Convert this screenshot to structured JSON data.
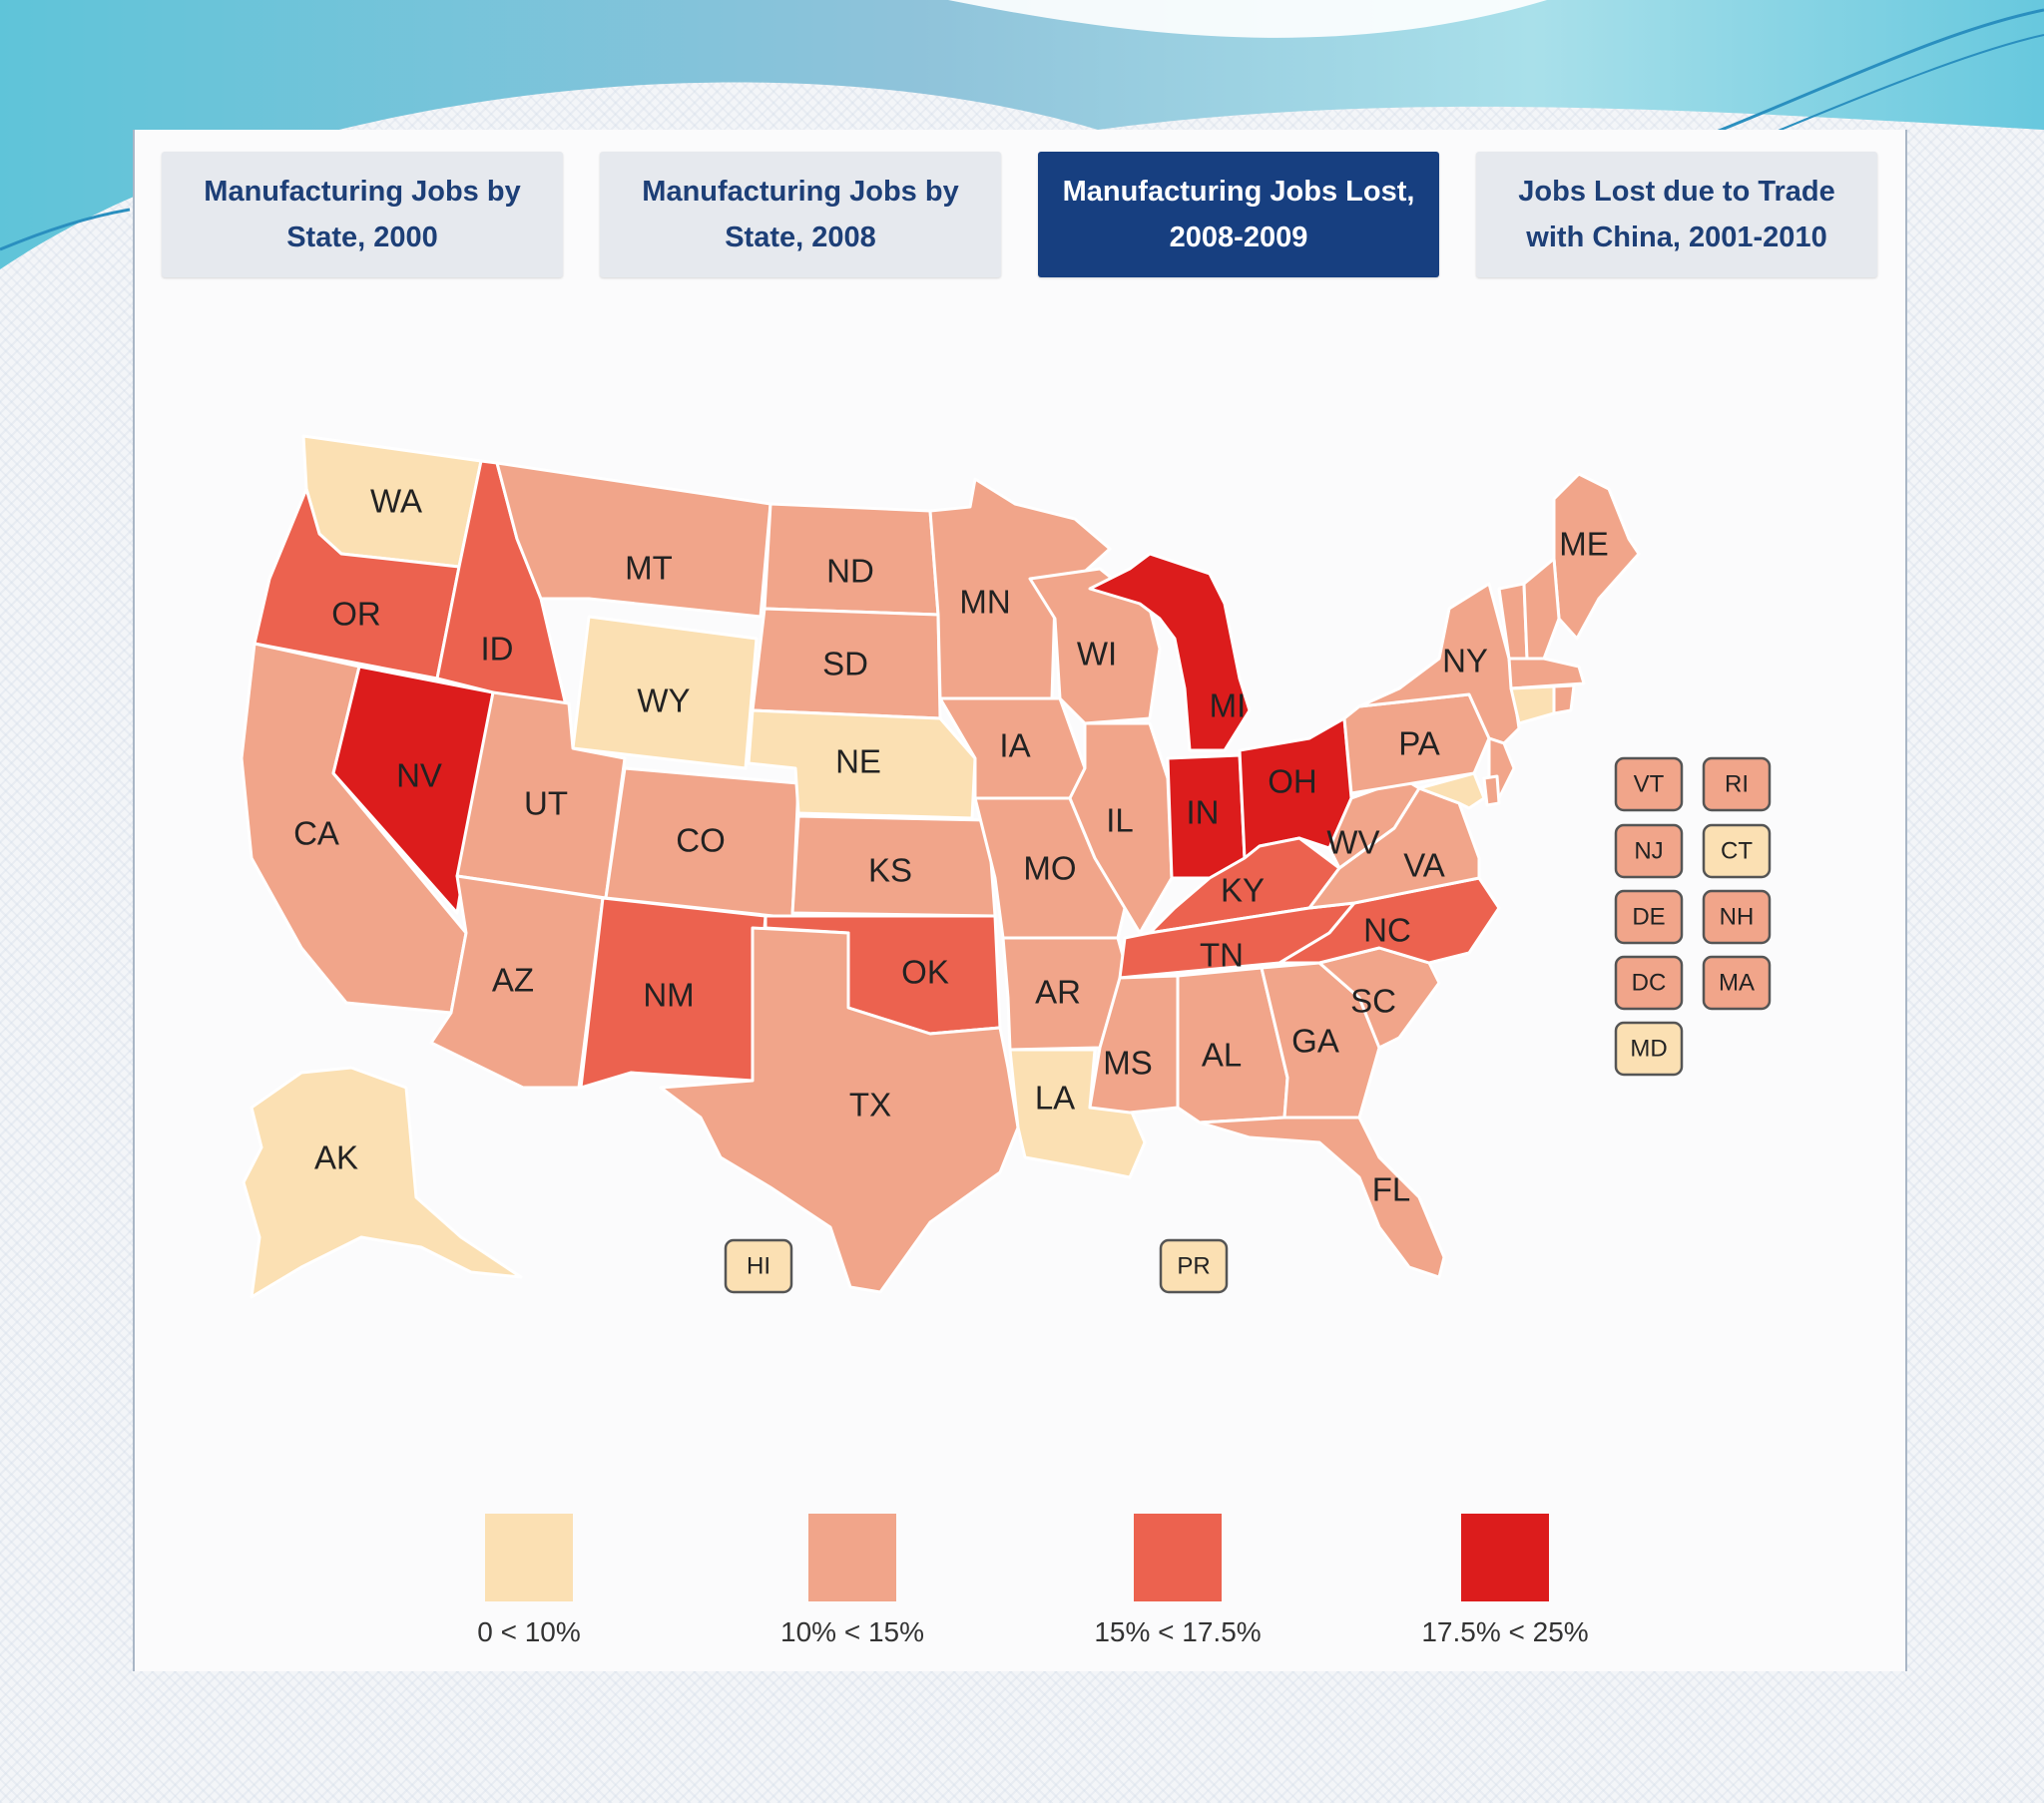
{
  "tabs": [
    {
      "label_line1": "Manufacturing Jobs by",
      "label_line2": "State, 2000",
      "active": false
    },
    {
      "label_line1": "Manufacturing Jobs by",
      "label_line2": "State, 2008",
      "active": false
    },
    {
      "label_line1": "Manufacturing Jobs Lost,",
      "label_line2": "2008-2009",
      "active": true
    },
    {
      "label_line1": "Jobs Lost due to Trade",
      "label_line2": "with China, 2001-2010",
      "active": false
    }
  ],
  "colors": {
    "bin0": "#fbe0b3",
    "bin1": "#f1a58a",
    "bin2": "#ec624f",
    "bin3": "#dc1c1c",
    "active_tab": "#173f80",
    "tab_text": "#1d3f77"
  },
  "legend": [
    {
      "label": "0 < 10%",
      "bin": 0
    },
    {
      "label": "10% < 15%",
      "bin": 1
    },
    {
      "label": "15% < 17.5%",
      "bin": 2
    },
    {
      "label": "17.5% < 25%",
      "bin": 3
    }
  ],
  "states": [
    {
      "code": "WA",
      "bin": 0
    },
    {
      "code": "OR",
      "bin": 2
    },
    {
      "code": "CA",
      "bin": 1
    },
    {
      "code": "NV",
      "bin": 3
    },
    {
      "code": "ID",
      "bin": 2
    },
    {
      "code": "MT",
      "bin": 1
    },
    {
      "code": "WY",
      "bin": 0
    },
    {
      "code": "UT",
      "bin": 1
    },
    {
      "code": "AZ",
      "bin": 1
    },
    {
      "code": "CO",
      "bin": 1
    },
    {
      "code": "NM",
      "bin": 2
    },
    {
      "code": "ND",
      "bin": 1
    },
    {
      "code": "SD",
      "bin": 1
    },
    {
      "code": "NE",
      "bin": 0
    },
    {
      "code": "KS",
      "bin": 1
    },
    {
      "code": "OK",
      "bin": 2
    },
    {
      "code": "TX",
      "bin": 1
    },
    {
      "code": "MN",
      "bin": 1
    },
    {
      "code": "IA",
      "bin": 1
    },
    {
      "code": "MO",
      "bin": 1
    },
    {
      "code": "AR",
      "bin": 1
    },
    {
      "code": "LA",
      "bin": 0
    },
    {
      "code": "WI",
      "bin": 1
    },
    {
      "code": "IL",
      "bin": 1
    },
    {
      "code": "MI",
      "bin": 3
    },
    {
      "code": "IN",
      "bin": 3
    },
    {
      "code": "OH",
      "bin": 3
    },
    {
      "code": "KY",
      "bin": 2
    },
    {
      "code": "TN",
      "bin": 2
    },
    {
      "code": "MS",
      "bin": 1
    },
    {
      "code": "AL",
      "bin": 1
    },
    {
      "code": "GA",
      "bin": 1
    },
    {
      "code": "FL",
      "bin": 1
    },
    {
      "code": "SC",
      "bin": 1
    },
    {
      "code": "NC",
      "bin": 2
    },
    {
      "code": "VA",
      "bin": 1
    },
    {
      "code": "WV",
      "bin": 1
    },
    {
      "code": "PA",
      "bin": 1
    },
    {
      "code": "NY",
      "bin": 1
    },
    {
      "code": "ME",
      "bin": 1
    },
    {
      "code": "AK",
      "bin": 0
    }
  ],
  "small_states": [
    {
      "code": "VT",
      "bin": 1
    },
    {
      "code": "RI",
      "bin": 1
    },
    {
      "code": "NJ",
      "bin": 1
    },
    {
      "code": "CT",
      "bin": 0
    },
    {
      "code": "DE",
      "bin": 1
    },
    {
      "code": "NH",
      "bin": 1
    },
    {
      "code": "DC",
      "bin": 1
    },
    {
      "code": "MA",
      "bin": 1
    },
    {
      "code": "MD",
      "bin": 0
    },
    {
      "code": "HI",
      "bin": 0
    },
    {
      "code": "PR",
      "bin": 0
    }
  ]
}
